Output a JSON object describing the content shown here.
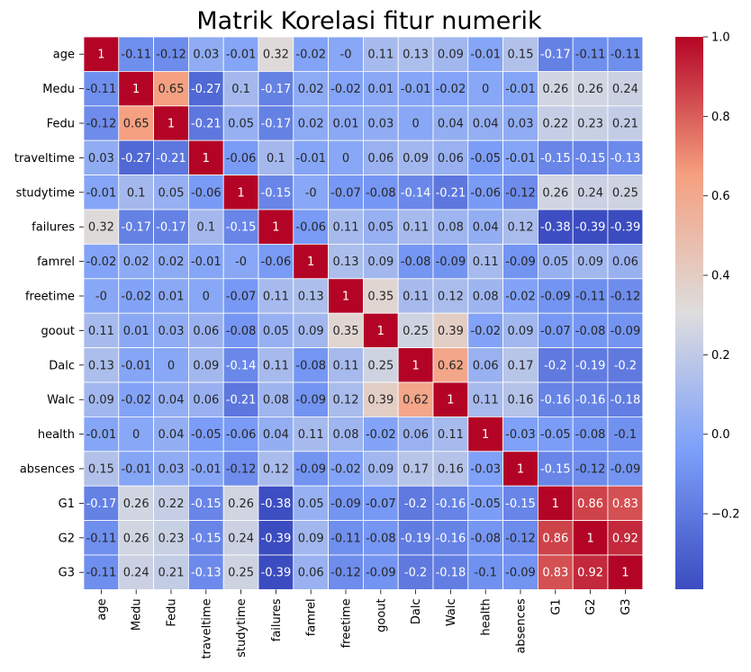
{
  "chart_data": {
    "type": "heatmap",
    "title": "Matrik Korelasi fitur numerik",
    "labels": [
      "age",
      "Medu",
      "Fedu",
      "traveltime",
      "studytime",
      "failures",
      "famrel",
      "freetime",
      "goout",
      "Dalc",
      "Walc",
      "health",
      "absences",
      "G1",
      "G2",
      "G3"
    ],
    "matrix": [
      [
        1,
        -0.11,
        -0.12,
        0.03,
        -0.01,
        0.32,
        -0.02,
        0,
        0.11,
        0.13,
        0.09,
        -0.01,
        0.15,
        -0.17,
        -0.11,
        -0.11
      ],
      [
        -0.11,
        1,
        0.65,
        -0.27,
        0.1,
        -0.17,
        0.02,
        -0.02,
        0.01,
        -0.01,
        -0.02,
        0,
        -0.01,
        0.26,
        0.26,
        0.24
      ],
      [
        -0.12,
        0.65,
        1,
        -0.21,
        0.05,
        -0.17,
        0.02,
        0.01,
        0.03,
        0,
        0.04,
        0.04,
        0.03,
        0.22,
        0.23,
        0.21
      ],
      [
        0.03,
        -0.27,
        -0.21,
        1,
        -0.06,
        0.1,
        -0.01,
        0,
        0.06,
        0.09,
        0.06,
        -0.05,
        -0.01,
        -0.15,
        -0.15,
        -0.13
      ],
      [
        -0.01,
        0.1,
        0.05,
        -0.06,
        1,
        -0.15,
        0,
        -0.07,
        -0.08,
        -0.14,
        -0.21,
        -0.06,
        -0.12,
        0.26,
        0.24,
        0.25
      ],
      [
        0.32,
        -0.17,
        -0.17,
        0.1,
        -0.15,
        1,
        -0.06,
        0.11,
        0.05,
        0.11,
        0.08,
        0.04,
        0.12,
        -0.38,
        -0.39,
        -0.39
      ],
      [
        -0.02,
        0.02,
        0.02,
        -0.01,
        0,
        -0.06,
        1,
        0.13,
        0.09,
        -0.08,
        -0.09,
        0.11,
        -0.09,
        0.05,
        0.09,
        0.06
      ],
      [
        0,
        -0.02,
        0.01,
        0,
        -0.07,
        0.11,
        0.13,
        1,
        0.35,
        0.11,
        0.12,
        0.08,
        -0.02,
        -0.09,
        -0.11,
        -0.12
      ],
      [
        0.11,
        0.01,
        0.03,
        0.06,
        -0.08,
        0.05,
        0.09,
        0.35,
        1,
        0.25,
        0.39,
        -0.02,
        0.09,
        -0.07,
        -0.08,
        -0.09
      ],
      [
        0.13,
        -0.01,
        0,
        0.09,
        -0.14,
        0.11,
        -0.08,
        0.11,
        0.25,
        1,
        0.62,
        0.06,
        0.17,
        -0.2,
        -0.19,
        -0.2
      ],
      [
        0.09,
        -0.02,
        0.04,
        0.06,
        -0.21,
        0.08,
        -0.09,
        0.12,
        0.39,
        0.62,
        1,
        0.11,
        0.16,
        -0.16,
        -0.16,
        -0.18
      ],
      [
        -0.01,
        0,
        0.04,
        -0.05,
        -0.06,
        0.04,
        0.11,
        0.08,
        -0.02,
        0.06,
        0.11,
        1,
        -0.03,
        -0.05,
        -0.08,
        -0.1
      ],
      [
        0.15,
        -0.01,
        0.03,
        -0.01,
        -0.12,
        0.12,
        -0.09,
        -0.02,
        0.09,
        0.17,
        0.16,
        -0.03,
        1,
        -0.15,
        -0.12,
        -0.09
      ],
      [
        -0.17,
        0.26,
        0.22,
        -0.15,
        0.26,
        -0.38,
        0.05,
        -0.09,
        -0.07,
        -0.2,
        -0.16,
        -0.05,
        -0.15,
        1,
        0.86,
        0.83
      ],
      [
        -0.11,
        0.26,
        0.23,
        -0.15,
        0.24,
        -0.39,
        0.09,
        -0.11,
        -0.08,
        -0.19,
        -0.16,
        -0.08,
        -0.12,
        0.86,
        1,
        0.92
      ],
      [
        -0.11,
        0.24,
        0.21,
        -0.13,
        0.25,
        -0.39,
        0.06,
        -0.12,
        -0.09,
        -0.2,
        -0.18,
        -0.1,
        -0.09,
        0.83,
        0.92,
        1
      ]
    ],
    "colormap": "coolwarm",
    "colorbar": {
      "min": -0.39,
      "max": 1.0,
      "ticks": [
        1.0,
        0.8,
        0.6,
        0.4,
        0.2,
        0.0,
        -0.2
      ],
      "tick_labels": [
        "1.0",
        "0.8",
        "0.6",
        "0.4",
        "0.2",
        "0.0",
        "−0.2"
      ]
    },
    "cell_border_color": "#ffffff",
    "annotations": true
  }
}
